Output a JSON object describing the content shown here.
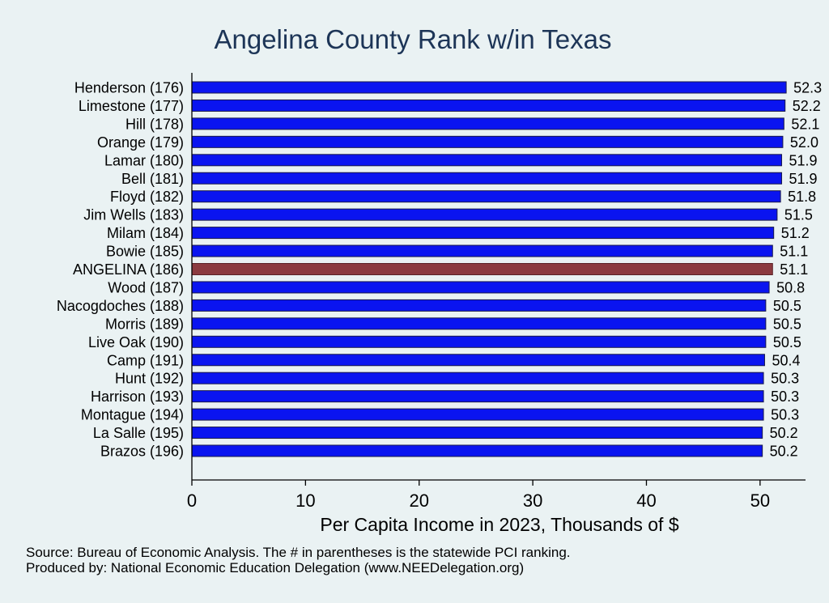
{
  "chart_data": {
    "type": "bar",
    "orientation": "horizontal",
    "title": "Angelina County Rank w/in Texas",
    "xlabel": "Per Capita Income in 2023, Thousands of $",
    "xlim": [
      0,
      54
    ],
    "xticks": [
      0,
      10,
      20,
      30,
      40,
      50
    ],
    "grid": false,
    "legend": "none",
    "categories": [
      "Henderson (176)",
      "Limestone (177)",
      "Hill (178)",
      "Orange (179)",
      "Lamar (180)",
      "Bell (181)",
      "Floyd (182)",
      "Jim Wells (183)",
      "Milam (184)",
      "Bowie (185)",
      "ANGELINA (186)",
      "Wood (187)",
      "Nacogdoches (188)",
      "Morris (189)",
      "Live Oak (190)",
      "Camp (191)",
      "Hunt (192)",
      "Harrison (193)",
      "Montague (194)",
      "La Salle (195)",
      "Brazos (196)"
    ],
    "values": [
      52.3,
      52.2,
      52.1,
      52.0,
      51.9,
      51.9,
      51.8,
      51.5,
      51.2,
      51.1,
      51.1,
      50.8,
      50.5,
      50.5,
      50.5,
      50.4,
      50.3,
      50.3,
      50.3,
      50.2,
      50.2
    ],
    "value_labels": [
      "52.3",
      "52.2",
      "52.1",
      "52.0",
      "51.9",
      "51.9",
      "51.8",
      "51.5",
      "51.2",
      "51.1",
      "51.1",
      "50.8",
      "50.5",
      "50.5",
      "50.5",
      "50.4",
      "50.3",
      "50.3",
      "50.3",
      "50.2",
      "50.2"
    ],
    "highlight_category": "ANGELINA (186)",
    "colors": {
      "bar": "#0a14f0",
      "highlight": "#8b3a3f",
      "title": "#1d3557",
      "background": "#eaf2f3"
    }
  },
  "footer": {
    "source": "Source: Bureau of Economic Analysis. The # in parentheses is the statewide PCI ranking.",
    "produced_by": "Produced by: National Economic Education Delegation (www.NEEDelegation.org)"
  }
}
